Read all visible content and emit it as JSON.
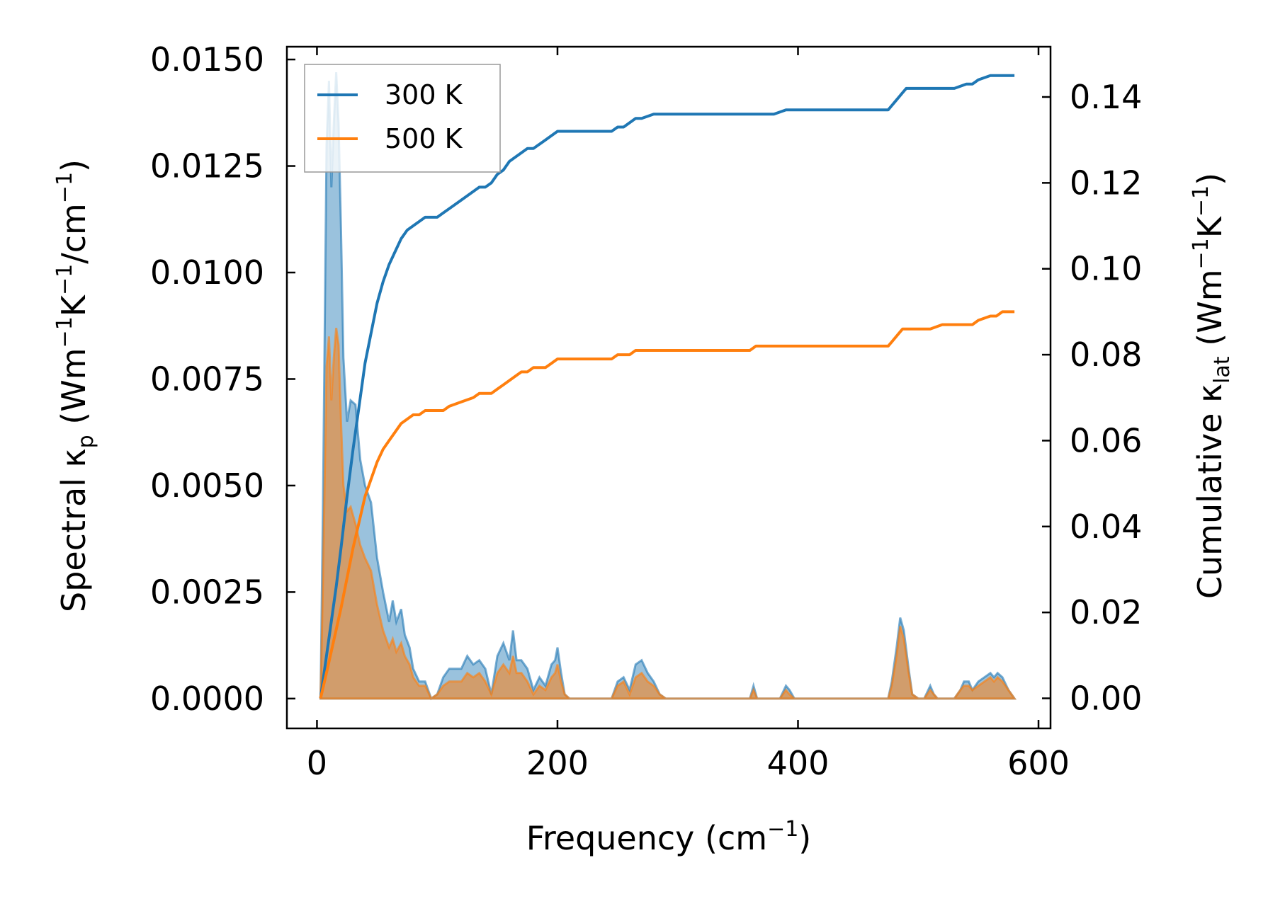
{
  "chart_data": {
    "type": "area",
    "title": "",
    "xlabel": {
      "main": "Frequency (cm",
      "sup": "−1",
      "end": ")"
    },
    "ylabel_left": {
      "pre": "Spectral κ",
      "sub": "p",
      "mid1": " (Wm",
      "sup1": "−1",
      "mid2": "K",
      "sup2": "−1",
      "mid3": "/cm",
      "sup3": "−1",
      "end": ")"
    },
    "ylabel_right": {
      "pre": "Cumulative κ",
      "sub": "lat",
      "mid1": " (Wm",
      "sup1": "−1",
      "mid2": "K",
      "sup2": "−1",
      "end": ")"
    },
    "xlim": [
      -25,
      610
    ],
    "ylim_left": [
      -0.0007,
      0.0153
    ],
    "ylim_right": [
      -0.007,
      0.1517
    ],
    "x_ticks": [
      "0",
      "200",
      "400",
      "600"
    ],
    "y_left_ticks": [
      "0.0000",
      "0.0025",
      "0.0050",
      "0.0075",
      "0.0100",
      "0.0125",
      "0.0150"
    ],
    "y_right_ticks": [
      "0.00",
      "0.02",
      "0.04",
      "0.06",
      "0.08",
      "0.10",
      "0.12",
      "0.14"
    ],
    "grid": false,
    "legend_position": "top-left",
    "series": [
      {
        "name": "300 K",
        "color": "#1f77b4",
        "spectral": {
          "x": [
            3,
            5,
            8,
            10,
            12,
            14,
            16,
            18,
            20,
            22,
            25,
            28,
            32,
            36,
            40,
            45,
            50,
            55,
            60,
            63,
            66,
            70,
            73,
            77,
            80,
            85,
            90,
            95,
            100,
            105,
            110,
            115,
            120,
            125,
            130,
            135,
            140,
            145,
            150,
            155,
            160,
            163,
            166,
            170,
            175,
            180,
            185,
            190,
            195,
            198,
            200,
            203,
            206,
            210,
            230,
            245,
            250,
            255,
            260,
            265,
            270,
            275,
            280,
            285,
            290,
            360,
            363,
            366,
            370,
            385,
            390,
            393,
            397,
            400,
            470,
            475,
            478,
            482,
            485,
            488,
            492,
            495,
            500,
            505,
            510,
            513,
            516,
            520,
            530,
            535,
            538,
            542,
            545,
            550,
            555,
            560,
            563,
            566,
            570,
            575,
            580
          ],
          "y": [
            0.0,
            0.0045,
            0.013,
            0.0145,
            0.012,
            0.0135,
            0.0147,
            0.0135,
            0.011,
            0.008,
            0.0065,
            0.007,
            0.0069,
            0.0056,
            0.005,
            0.0046,
            0.0033,
            0.0025,
            0.0018,
            0.0023,
            0.0018,
            0.0021,
            0.0015,
            0.0012,
            0.0007,
            0.0004,
            0.0004,
            0.0,
            0.0001,
            0.0005,
            0.0007,
            0.0007,
            0.0007,
            0.001,
            0.0008,
            0.0009,
            0.0007,
            0.0001,
            0.001,
            0.0013,
            0.0009,
            0.0016,
            0.0009,
            0.0009,
            0.0007,
            0.0002,
            0.0005,
            0.0003,
            0.0008,
            0.0009,
            0.0012,
            0.0006,
            0.0001,
            0.0,
            0.0,
            0.0,
            0.0004,
            0.0005,
            0.0002,
            0.0008,
            0.0009,
            0.0006,
            0.0004,
            0.0001,
            0.0,
            0.0,
            0.0003,
            0.0,
            0.0,
            0.0,
            0.0003,
            0.0002,
            0.0,
            0.0,
            0.0,
            0.0,
            0.0004,
            0.0012,
            0.0019,
            0.0016,
            0.0007,
            0.0001,
            0.0,
            0.0,
            0.0003,
            0.0001,
            0.0,
            0.0,
            0.0,
            0.0002,
            0.0004,
            0.0004,
            0.0002,
            0.0004,
            0.0005,
            0.0006,
            0.0005,
            0.0006,
            0.0005,
            0.0002,
            0.0
          ]
        },
        "cumulative": {
          "x": [
            3,
            8,
            12,
            16,
            20,
            25,
            30,
            35,
            40,
            45,
            50,
            55,
            60,
            65,
            70,
            75,
            80,
            85,
            90,
            95,
            100,
            105,
            110,
            120,
            130,
            135,
            140,
            145,
            150,
            155,
            160,
            165,
            170,
            175,
            180,
            190,
            195,
            200,
            205,
            210,
            230,
            245,
            250,
            255,
            260,
            265,
            270,
            280,
            290,
            360,
            365,
            380,
            390,
            400,
            470,
            475,
            478,
            481,
            484,
            487,
            490,
            500,
            510,
            520,
            530,
            540,
            545,
            550,
            560,
            565,
            570,
            580
          ],
          "y": [
            0.0,
            0.01,
            0.018,
            0.026,
            0.035,
            0.047,
            0.058,
            0.068,
            0.078,
            0.085,
            0.092,
            0.097,
            0.101,
            0.104,
            0.107,
            0.109,
            0.11,
            0.111,
            0.112,
            0.112,
            0.112,
            0.113,
            0.114,
            0.116,
            0.118,
            0.119,
            0.119,
            0.12,
            0.122,
            0.123,
            0.125,
            0.126,
            0.127,
            0.128,
            0.128,
            0.13,
            0.131,
            0.132,
            0.132,
            0.132,
            0.132,
            0.132,
            0.133,
            0.133,
            0.134,
            0.135,
            0.135,
            0.136,
            0.136,
            0.136,
            0.136,
            0.136,
            0.137,
            0.137,
            0.137,
            0.137,
            0.138,
            0.139,
            0.14,
            0.141,
            0.142,
            0.142,
            0.142,
            0.142,
            0.142,
            0.143,
            0.143,
            0.144,
            0.145,
            0.145,
            0.145,
            0.145
          ]
        }
      },
      {
        "name": "500 K",
        "color": "#ff7f0e",
        "spectral": {
          "x": [
            3,
            5,
            8,
            10,
            12,
            14,
            16,
            18,
            20,
            22,
            25,
            28,
            32,
            36,
            40,
            45,
            50,
            55,
            60,
            63,
            66,
            70,
            73,
            77,
            80,
            85,
            90,
            95,
            100,
            105,
            110,
            115,
            120,
            125,
            130,
            135,
            140,
            145,
            150,
            155,
            160,
            163,
            166,
            170,
            175,
            180,
            185,
            190,
            195,
            198,
            200,
            203,
            206,
            210,
            230,
            245,
            250,
            255,
            260,
            265,
            270,
            275,
            280,
            285,
            290,
            360,
            363,
            366,
            370,
            385,
            390,
            393,
            397,
            400,
            470,
            475,
            478,
            482,
            485,
            488,
            492,
            495,
            500,
            505,
            510,
            513,
            516,
            520,
            530,
            535,
            538,
            542,
            545,
            550,
            555,
            560,
            563,
            566,
            570,
            575,
            580
          ],
          "y": [
            0.0,
            0.0027,
            0.0078,
            0.0085,
            0.007,
            0.008,
            0.0087,
            0.0083,
            0.0065,
            0.005,
            0.0044,
            0.0045,
            0.0041,
            0.0036,
            0.0033,
            0.003,
            0.0022,
            0.0016,
            0.0012,
            0.0014,
            0.0011,
            0.0013,
            0.001,
            0.0008,
            0.0005,
            0.0003,
            0.0003,
            0.0,
            0.0001,
            0.0003,
            0.0004,
            0.0004,
            0.0004,
            0.0006,
            0.0005,
            0.0006,
            0.0004,
            0.0001,
            0.0006,
            0.0008,
            0.0006,
            0.001,
            0.0006,
            0.0006,
            0.0004,
            0.0001,
            0.0003,
            0.0002,
            0.0005,
            0.0006,
            0.0008,
            0.0004,
            0.0001,
            0.0,
            0.0,
            0.0,
            0.0003,
            0.0004,
            0.0001,
            0.0005,
            0.0006,
            0.0004,
            0.0003,
            0.0001,
            0.0,
            0.0,
            0.0002,
            0.0,
            0.0,
            0.0,
            0.0002,
            0.0001,
            0.0,
            0.0,
            0.0,
            0.0,
            0.0003,
            0.001,
            0.0017,
            0.0014,
            0.0006,
            0.0001,
            0.0,
            0.0,
            0.0002,
            0.0001,
            0.0,
            0.0,
            0.0,
            0.0002,
            0.0003,
            0.0003,
            0.0002,
            0.0003,
            0.0004,
            0.0005,
            0.0004,
            0.0005,
            0.0004,
            0.0002,
            0.0
          ]
        },
        "cumulative": {
          "x": [
            3,
            8,
            12,
            16,
            20,
            25,
            30,
            35,
            40,
            45,
            50,
            55,
            60,
            65,
            70,
            75,
            80,
            85,
            90,
            95,
            100,
            105,
            110,
            120,
            130,
            135,
            140,
            145,
            150,
            155,
            160,
            165,
            170,
            175,
            180,
            190,
            195,
            200,
            205,
            210,
            230,
            245,
            250,
            255,
            260,
            265,
            270,
            280,
            290,
            360,
            365,
            380,
            390,
            400,
            470,
            475,
            478,
            481,
            484,
            487,
            490,
            500,
            510,
            520,
            530,
            540,
            545,
            550,
            560,
            565,
            570,
            580
          ],
          "y": [
            0.0,
            0.006,
            0.011,
            0.016,
            0.021,
            0.028,
            0.035,
            0.041,
            0.047,
            0.051,
            0.055,
            0.058,
            0.06,
            0.062,
            0.064,
            0.065,
            0.066,
            0.066,
            0.067,
            0.067,
            0.067,
            0.067,
            0.068,
            0.069,
            0.07,
            0.071,
            0.071,
            0.071,
            0.072,
            0.073,
            0.074,
            0.075,
            0.076,
            0.076,
            0.077,
            0.077,
            0.078,
            0.079,
            0.079,
            0.079,
            0.079,
            0.079,
            0.08,
            0.08,
            0.08,
            0.081,
            0.081,
            0.081,
            0.081,
            0.081,
            0.082,
            0.082,
            0.082,
            0.082,
            0.082,
            0.082,
            0.083,
            0.084,
            0.085,
            0.086,
            0.086,
            0.086,
            0.086,
            0.087,
            0.087,
            0.087,
            0.087,
            0.088,
            0.089,
            0.089,
            0.09,
            0.09
          ]
        }
      }
    ]
  }
}
